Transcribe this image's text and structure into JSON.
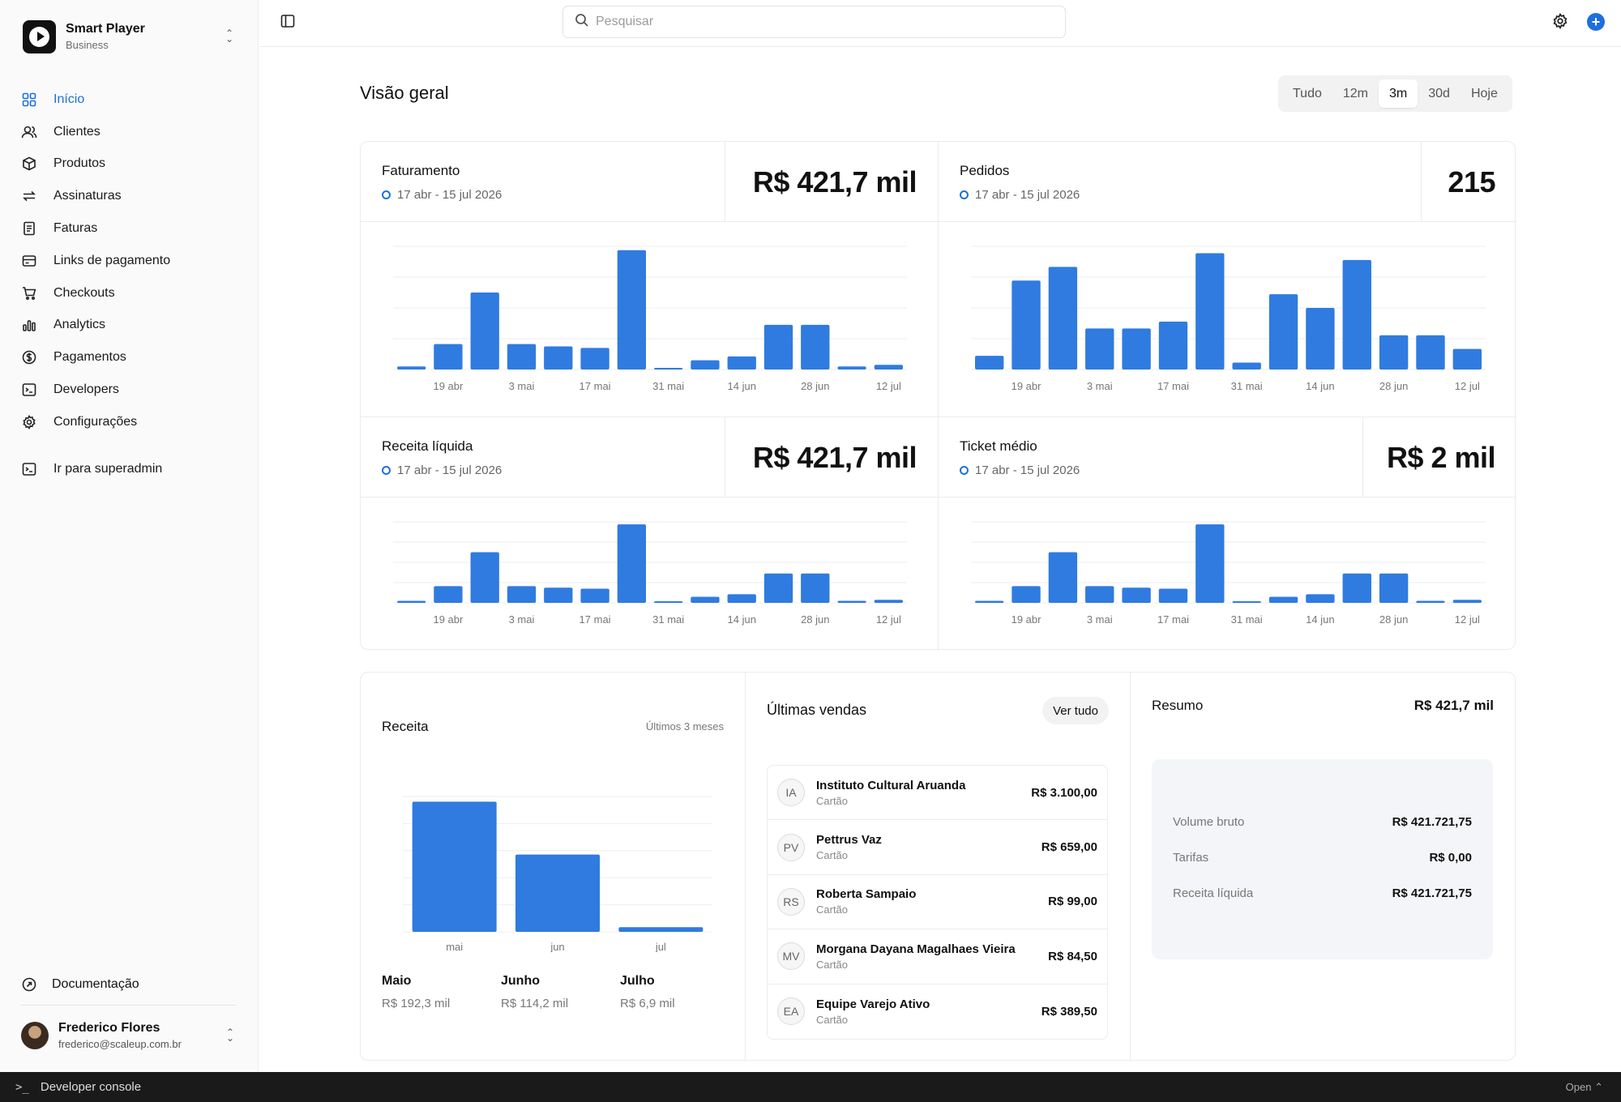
{
  "brand": {
    "name": "Smart Player",
    "plan": "Business"
  },
  "sidebar": {
    "items": [
      {
        "label": "Início",
        "icon": "grid-icon",
        "active": true
      },
      {
        "label": "Clientes",
        "icon": "users-icon"
      },
      {
        "label": "Produtos",
        "icon": "box-icon"
      },
      {
        "label": "Assinaturas",
        "icon": "refresh-icon"
      },
      {
        "label": "Faturas",
        "icon": "receipt-icon"
      },
      {
        "label": "Links de pagamento",
        "icon": "card-icon"
      },
      {
        "label": "Checkouts",
        "icon": "cart-icon"
      },
      {
        "label": "Analytics",
        "icon": "bar-chart-icon"
      },
      {
        "label": "Pagamentos",
        "icon": "dollar-circle-icon"
      },
      {
        "label": "Developers",
        "icon": "terminal-icon"
      },
      {
        "label": "Configurações",
        "icon": "gear-icon"
      }
    ],
    "superadmin": "Ir para superadmin",
    "docs": "Documentação"
  },
  "user": {
    "name": "Frederico Flores",
    "email": "frederico@scaleup.com.br"
  },
  "search": {
    "placeholder": "Pesquisar"
  },
  "overview": {
    "title": "Visão geral",
    "ranges": [
      "Tudo",
      "12m",
      "3m",
      "30d",
      "Hoje"
    ],
    "selected_range": "3m"
  },
  "chart_data": [
    {
      "type": "bar",
      "id": "faturamento",
      "title": "Faturamento",
      "date_range": "17 abr - 15 jul 2026",
      "value": "R$ 421,7 mil",
      "tick_labels": [
        "19 abr",
        "3 mai",
        "17 mai",
        "31 mai",
        "14 jun",
        "28 jun",
        "12 jul"
      ],
      "values": [
        4,
        33,
        100,
        33,
        30,
        28,
        155,
        1,
        12,
        17,
        58,
        58,
        4,
        6
      ],
      "ylim": [
        0,
        160
      ]
    },
    {
      "type": "bar",
      "id": "pedidos",
      "title": "Pedidos",
      "date_range": "17 abr - 15 jul 2026",
      "value": "215",
      "tick_labels": [
        "19 abr",
        "3 mai",
        "17 mai",
        "31 mai",
        "14 jun",
        "28 jun",
        "12 jul"
      ],
      "values": [
        2,
        13,
        15,
        6,
        6,
        7,
        17,
        1,
        11,
        9,
        16,
        5,
        5,
        3
      ],
      "ylim": [
        0,
        18
      ]
    },
    {
      "type": "bar",
      "id": "receita_liquida",
      "title": "Receita líquida",
      "date_range": "17 abr - 15 jul 2026",
      "value": "R$ 421,7 mil",
      "tick_labels": [
        "19 abr",
        "3 mai",
        "17 mai",
        "31 mai",
        "14 jun",
        "28 jun",
        "12 jul"
      ],
      "values": [
        4,
        33,
        100,
        33,
        30,
        28,
        155,
        1,
        12,
        17,
        58,
        58,
        4,
        6
      ],
      "ylim": [
        0,
        160
      ]
    },
    {
      "type": "bar",
      "id": "ticket_medio",
      "title": "Ticket médio",
      "date_range": "17 abr - 15 jul 2026",
      "value": "R$ 2 mil",
      "tick_labels": [
        "19 abr",
        "3 mai",
        "17 mai",
        "31 mai",
        "14 jun",
        "28 jun",
        "12 jul"
      ],
      "values": [
        4,
        33,
        100,
        33,
        30,
        28,
        155,
        1,
        12,
        17,
        58,
        58,
        4,
        6
      ],
      "ylim": [
        0,
        160
      ]
    },
    {
      "type": "bar",
      "id": "receita",
      "title": "Receita",
      "subtitle": "Últimos 3 meses",
      "categories": [
        "mai",
        "jun",
        "jul"
      ],
      "category_names": [
        "Maio",
        "Junho",
        "Julho"
      ],
      "value_labels": [
        "R$ 192,3 mil",
        "R$ 114,2 mil",
        "R$ 6,9 mil"
      ],
      "values": [
        192.3,
        114.2,
        6.9
      ],
      "ylim": [
        0,
        200
      ]
    }
  ],
  "sales": {
    "title": "Últimas vendas",
    "see_all": "Ver tudo",
    "items": [
      {
        "initials": "IA",
        "name": "Instituto Cultural Aruanda",
        "method": "Cartão",
        "amount": "R$ 3.100,00"
      },
      {
        "initials": "PV",
        "name": "Pettrus Vaz",
        "method": "Cartão",
        "amount": "R$ 659,00"
      },
      {
        "initials": "RS",
        "name": "Roberta Sampaio",
        "method": "Cartão",
        "amount": "R$ 99,00"
      },
      {
        "initials": "MV",
        "name": "Morgana Dayana Magalhaes Vieira",
        "method": "Cartão",
        "amount": "R$ 84,50"
      },
      {
        "initials": "EA",
        "name": "Equipe Varejo Ativo",
        "method": "Cartão",
        "amount": "R$ 389,50"
      }
    ]
  },
  "summary": {
    "title": "Resumo",
    "total": "R$ 421,7 mil",
    "rows": [
      {
        "label": "Volume bruto",
        "value": "R$ 421.721,75"
      },
      {
        "label": "Tarifas",
        "value": "R$ 0,00"
      },
      {
        "label": "Receita líquida",
        "value": "R$ 421.721,75"
      }
    ]
  },
  "console": {
    "label": "Developer console",
    "action": "Open"
  },
  "colors": {
    "accent": "#1d6fe0",
    "bar": "#2f7be0"
  }
}
